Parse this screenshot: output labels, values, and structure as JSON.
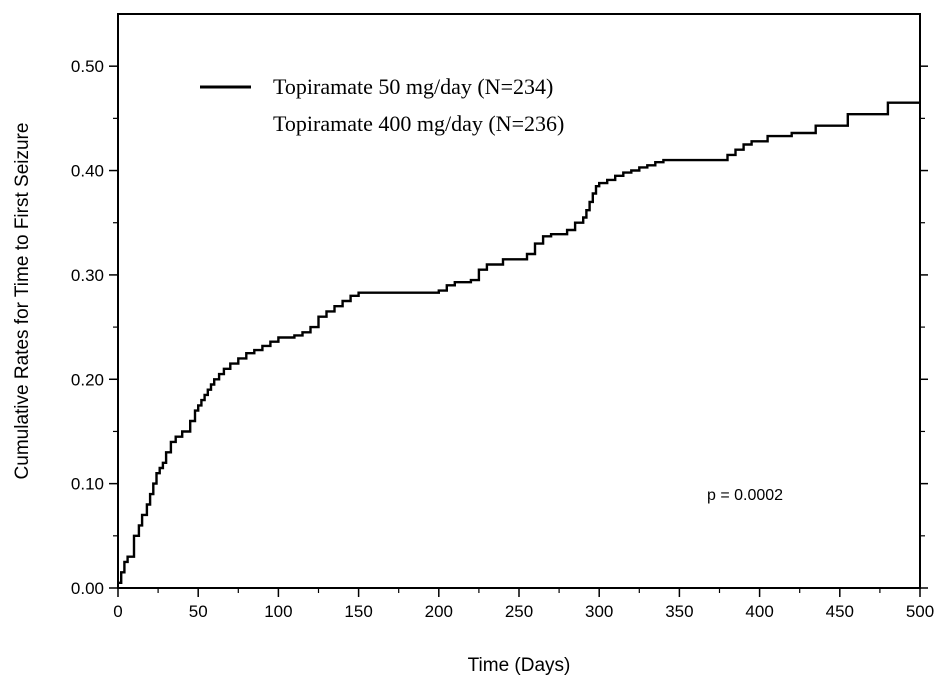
{
  "chart_data": {
    "type": "line",
    "xlabel": "Time (Days)",
    "ylabel": "Cumulative Rates for Time to First Seizure",
    "xlim": [
      0,
      500
    ],
    "ylim": [
      0,
      0.55
    ],
    "x_ticks": [
      0,
      50,
      100,
      150,
      200,
      250,
      300,
      350,
      400,
      450,
      500
    ],
    "x_tick_labels": [
      "0",
      "50",
      "100",
      "150",
      "200",
      "250",
      "300",
      "350",
      "400",
      "450",
      "500"
    ],
    "y_ticks": [
      0,
      0.1,
      0.2,
      0.3,
      0.4,
      0.5
    ],
    "y_tick_labels": [
      "0.00",
      "0.10",
      "0.20",
      "0.30",
      "0.40",
      "0.50"
    ],
    "grid": false,
    "legend_position": "top-left",
    "legend": [
      "Topiramate 50 mg/day (N=234)",
      "Topiramate 400 mg/day (N=236)"
    ],
    "annotation": "p = 0.0002",
    "series": [
      {
        "name": "Topiramate 50 mg/day (N=234)",
        "step": true,
        "color": "#000000",
        "x": [
          0,
          2,
          4,
          6,
          10,
          13,
          15,
          18,
          20,
          22,
          24,
          26,
          28,
          30,
          33,
          36,
          40,
          45,
          48,
          50,
          52,
          54,
          56,
          58,
          60,
          63,
          66,
          70,
          75,
          80,
          85,
          90,
          95,
          100,
          105,
          110,
          115,
          120,
          125,
          130,
          135,
          140,
          145,
          150,
          160,
          180,
          200,
          205,
          210,
          220,
          225,
          230,
          240,
          255,
          260,
          265,
          270,
          280,
          285,
          290,
          292,
          294,
          296,
          298,
          300,
          305,
          310,
          315,
          320,
          325,
          330,
          335,
          340,
          350,
          360,
          375,
          380,
          385,
          390,
          395,
          405,
          420,
          435,
          455,
          480,
          500
        ],
        "y": [
          0.005,
          0.015,
          0.025,
          0.03,
          0.05,
          0.06,
          0.07,
          0.08,
          0.09,
          0.1,
          0.11,
          0.115,
          0.12,
          0.13,
          0.14,
          0.145,
          0.15,
          0.16,
          0.17,
          0.175,
          0.18,
          0.185,
          0.19,
          0.195,
          0.2,
          0.205,
          0.21,
          0.215,
          0.22,
          0.225,
          0.228,
          0.232,
          0.236,
          0.24,
          0.24,
          0.242,
          0.245,
          0.25,
          0.26,
          0.265,
          0.27,
          0.275,
          0.28,
          0.283,
          0.283,
          0.283,
          0.285,
          0.29,
          0.293,
          0.295,
          0.305,
          0.31,
          0.315,
          0.32,
          0.33,
          0.337,
          0.339,
          0.343,
          0.35,
          0.355,
          0.362,
          0.37,
          0.378,
          0.385,
          0.388,
          0.391,
          0.395,
          0.398,
          0.4,
          0.403,
          0.405,
          0.408,
          0.41,
          0.41,
          0.41,
          0.41,
          0.415,
          0.42,
          0.425,
          0.428,
          0.433,
          0.436,
          0.443,
          0.454,
          0.465,
          0.465
        ]
      }
    ]
  }
}
